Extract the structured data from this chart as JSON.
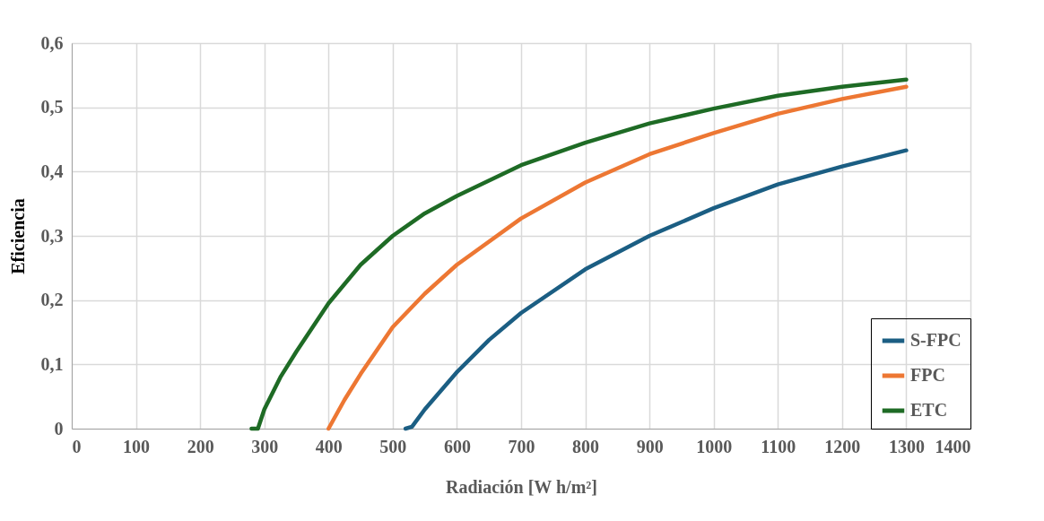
{
  "chart_data": {
    "type": "line",
    "xlabel": "Radiación [W h/m²]",
    "ylabel": "Eficiencia",
    "xlim": [
      0,
      1400
    ],
    "xticks": [
      0,
      100,
      200,
      300,
      400,
      500,
      600,
      700,
      800,
      900,
      1000,
      1100,
      1200,
      1300,
      1400
    ],
    "ylim": [
      0,
      0.6
    ],
    "yticks": [
      0,
      {
        "value": 0.1,
        "label": "0,1"
      },
      {
        "value": 0.2,
        "label": "0,2"
      },
      {
        "value": 0.3,
        "label": "0,3"
      },
      {
        "value": 0.4,
        "label": "0,4"
      },
      {
        "value": 0.5,
        "label": "0,5"
      },
      {
        "value": 0.6,
        "label": "0,6"
      }
    ],
    "grid": true,
    "legend": "bottom right",
    "marker": "none",
    "line_style": "solid",
    "series": [
      {
        "name": "S-FPC",
        "color": "#1b5e83",
        "x": [
          520,
          530,
          550,
          600,
          650,
          700,
          800,
          900,
          1000,
          1100,
          1200,
          1300
        ],
        "values": [
          0,
          0.003,
          0.03,
          0.088,
          0.138,
          0.18,
          0.248,
          0.3,
          0.343,
          0.38,
          0.408,
          0.433
        ]
      },
      {
        "name": "FPC",
        "color": "#ed7733",
        "x": [
          400,
          425,
          450,
          500,
          550,
          600,
          700,
          800,
          900,
          1000,
          1100,
          1200,
          1300
        ],
        "values": [
          0,
          0.045,
          0.085,
          0.158,
          0.21,
          0.255,
          0.327,
          0.383,
          0.427,
          0.46,
          0.49,
          0.513,
          0.532
        ]
      },
      {
        "name": "ETC",
        "color": "#1e6b25",
        "x": [
          280,
          290,
          300,
          325,
          350,
          400,
          450,
          500,
          550,
          600,
          700,
          800,
          900,
          1000,
          1100,
          1200,
          1300
        ],
        "values": [
          0,
          0,
          0.03,
          0.08,
          0.12,
          0.195,
          0.255,
          0.3,
          0.335,
          0.362,
          0.41,
          0.445,
          0.475,
          0.498,
          0.518,
          0.532,
          0.543
        ]
      }
    ]
  }
}
